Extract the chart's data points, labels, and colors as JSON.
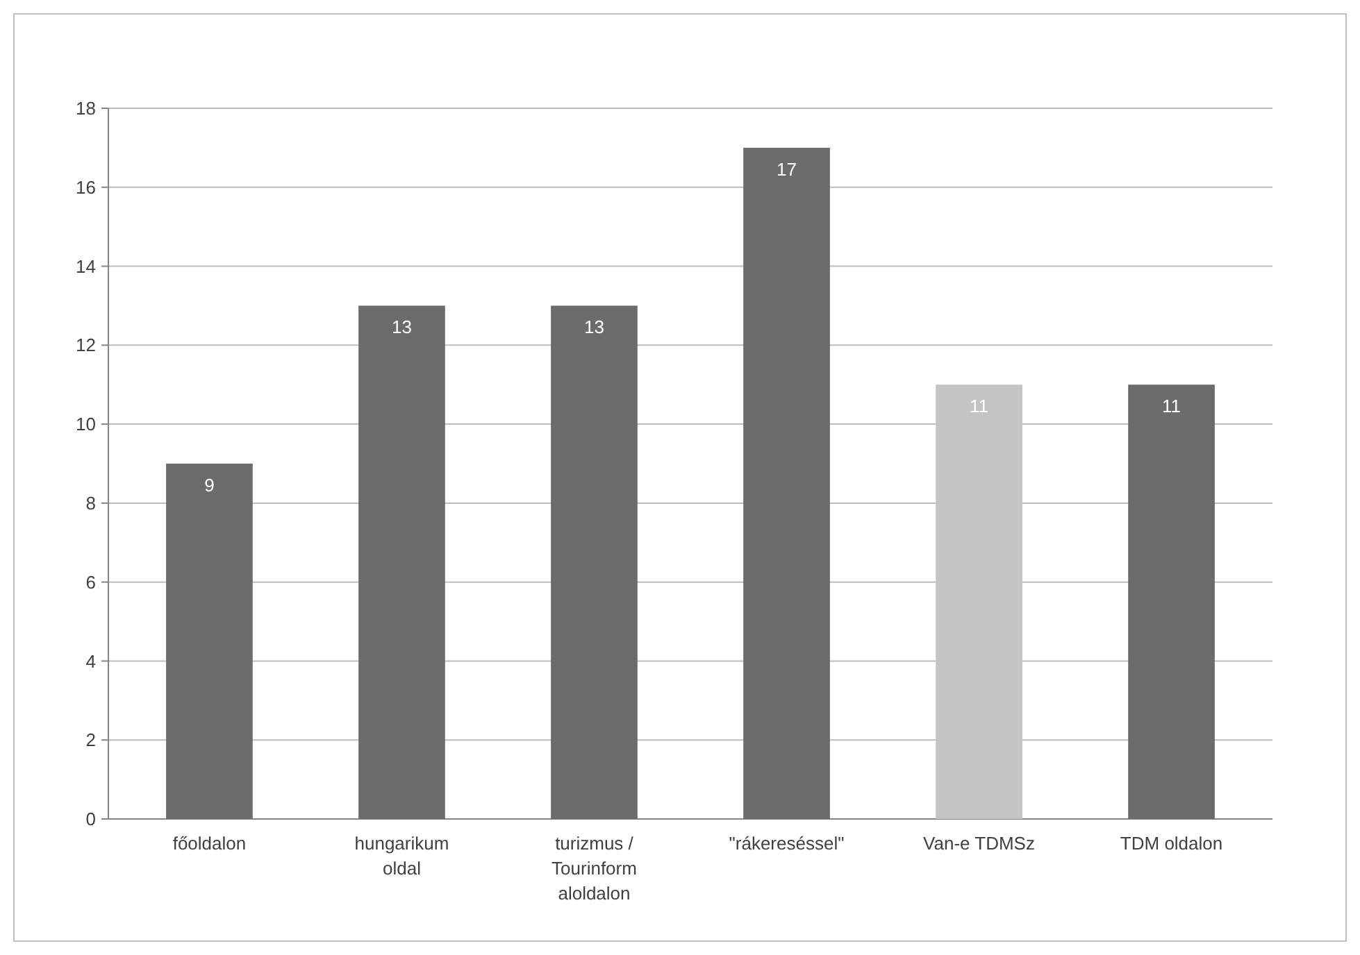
{
  "chart_data": {
    "type": "bar",
    "categories": [
      "főoldalon",
      "hungarikum oldal",
      "turizmus / Tourinform aloldalon",
      "\"rákereséssel\"",
      "Van-e TDMSz",
      "TDM oldalon"
    ],
    "values": [
      9,
      13,
      13,
      17,
      11,
      11
    ],
    "colors": [
      "#6b6b6b",
      "#6b6b6b",
      "#6b6b6b",
      "#6b6b6b",
      "#c4c4c4",
      "#6b6b6b"
    ],
    "ylim": [
      0,
      18
    ],
    "yticks": [
      0,
      2,
      4,
      6,
      8,
      10,
      12,
      14,
      16,
      18
    ],
    "grid": "y",
    "data_labels": true
  }
}
